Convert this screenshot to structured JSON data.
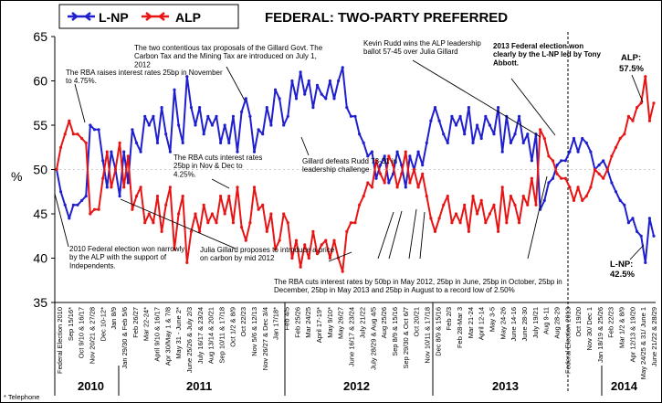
{
  "chart_data": {
    "type": "line",
    "title": "FEDERAL: TWO-PARTY PREFERRED",
    "ylabel": "%",
    "ylim": [
      35,
      65
    ],
    "yticks": [
      35,
      40,
      45,
      50,
      55,
      60,
      65
    ],
    "footnote": "* Telephone",
    "colors": {
      "lnp": "#1f1fcf",
      "alp": "#e81414"
    },
    "series": [
      {
        "name": "L-NP",
        "color": "#1f1fcf",
        "values": [
          50,
          47.5,
          46,
          44.5,
          46,
          46,
          46.5,
          47,
          55,
          54.5,
          54.5,
          51,
          48,
          52,
          50,
          47,
          52,
          48.5,
          54.5,
          53,
          52,
          56,
          55,
          56,
          53,
          57,
          54,
          52,
          59,
          55,
          53,
          60.5,
          57,
          55,
          57,
          54,
          56,
          55,
          56,
          53,
          55,
          53,
          56,
          52,
          56.5,
          58,
          56,
          52,
          54.5,
          54,
          57,
          55,
          59,
          58,
          55,
          56,
          60,
          58,
          61,
          58.5,
          60,
          57,
          59.5,
          58.5,
          58,
          60,
          58,
          60,
          61.5,
          57,
          56,
          56,
          54,
          53,
          51.5,
          52,
          49,
          50.5,
          51.5,
          48.5,
          49.5,
          52,
          50.5,
          48,
          51.5,
          50,
          52,
          50.5,
          53,
          55.5,
          57,
          55.5,
          54,
          53,
          56,
          55,
          56,
          54,
          57,
          53,
          55,
          53.5,
          56,
          55,
          54,
          57,
          52,
          56,
          53,
          54,
          56,
          53,
          54,
          51,
          54,
          45.5,
          46.5,
          48.5,
          49,
          50.5,
          51,
          51,
          52,
          53.5,
          52,
          53.5,
          53,
          52,
          50,
          50.5,
          51,
          50,
          48.5,
          47.5,
          46.5,
          46,
          44,
          44.5,
          43,
          42.5,
          39.5,
          44.5,
          42.5
        ]
      },
      {
        "name": "ALP",
        "color": "#e81414",
        "values": [
          50,
          52.5,
          54,
          55.5,
          54,
          54,
          53.5,
          53,
          45,
          45.5,
          45.5,
          49,
          52,
          48,
          50,
          53,
          48,
          51.5,
          45.5,
          47,
          48,
          44,
          45,
          44,
          47,
          43,
          46,
          48,
          41,
          45,
          47,
          39.5,
          43,
          45,
          43,
          46,
          44,
          45,
          44,
          47,
          45,
          47,
          44,
          48,
          43.5,
          42,
          44,
          48,
          45.5,
          46,
          43,
          45,
          41,
          42,
          45,
          44,
          40,
          42,
          39,
          41.5,
          40,
          43,
          40.5,
          41.5,
          42,
          40,
          42,
          40,
          38.5,
          43,
          44,
          44,
          46,
          47,
          48.5,
          48,
          51,
          49.5,
          48.5,
          51.5,
          50.5,
          48,
          49.5,
          52,
          48.5,
          50,
          48,
          49.5,
          47,
          44.5,
          43,
          44.5,
          46,
          47,
          44,
          45,
          44,
          46,
          43,
          47,
          45,
          46.5,
          44,
          45,
          46,
          43,
          48,
          44,
          47,
          46,
          44,
          47,
          46,
          49,
          46,
          54.5,
          53.5,
          51.5,
          51,
          49.5,
          49,
          49,
          48,
          46.5,
          48,
          46.5,
          47,
          48,
          50,
          49.5,
          49,
          50,
          51.5,
          52.5,
          53.5,
          54,
          56,
          55.5,
          57,
          57.5,
          60.5,
          55.5,
          57.5
        ]
      }
    ],
    "legend": [
      "L-NP",
      "ALP"
    ],
    "x_tick_labels": [
      "Federal Election 2010",
      "Sep 15/16*",
      "Oct 9/10 & 16/17",
      "Nov 20/21 & 27/28",
      "Dec 10-12*",
      "Jan 8/9",
      "Jan 29/30 & Feb 5/6",
      "Feb 26/27",
      "Mar 22-24*",
      "April 9/10 & 16/17",
      "Apr 30/May 1 & 7/8",
      "May 31 - June 2*",
      "June 25/26 & July 2/3",
      "July 16/17 & 23/24",
      "Aug 13/14 & 20/21",
      "Sep 10/11 & 17/18",
      "Oct 1/2 & 8/9",
      "Oct 22/23",
      "Nov 5/6 & 12/13",
      "Nov 26/27 & Dec 3/4",
      "Jan 17/18*",
      "Feb 4/5",
      "Feb 25/26",
      "Mar 24/25",
      "April 17-19*",
      "May 9/10*",
      "May 26/27",
      "June 16/17 & 23/24",
      "July 21/22",
      "July 28/29 & Aug 4/5",
      "Aug 25/26",
      "Sep 8/9 & 15/16",
      "Sep 29/30 & Oct 6/7",
      "Oct 20/21",
      "Nov 10/11 & 17/18",
      "Dec 8/9 & 15/16",
      "Feb 2/3",
      "Feb 28-Mar 3",
      "Mar 21-24",
      "April 12-14",
      "May 3-5",
      "May 24-26",
      "June 14-16",
      "June 28-30",
      "July 19/21",
      "Aug 9-11",
      "Aug 28-29",
      "Federal Election 2013",
      "Oct 19/20",
      "Nov 30/ Dec 1",
      "Jan 18/19 & 25/26",
      "Feb 22/23",
      "Mar 1/2 & 8/9",
      "Apr 12/13 & 19/20",
      "May 24/25 & 31/ June 1",
      "June 21/22 & 28/29"
    ],
    "year_labels": [
      "2010",
      "2011",
      "2012",
      "2013",
      "2014"
    ],
    "annotations": [
      "The RBA raises interest rates 25bp in November to 4.75%.",
      "The two contentious tax proposals of the Gillard Govt. The Carbon Tax and the Mining Tax are introduced on July 1, 2012",
      "Kevin Rudd wins the ALP leadership ballot 57-45 over Julia Gillard",
      "2013 Federal election won clearly by the L-NP led by Tony Abbott.",
      "The RBA cuts interest rates 25bp in Nov & Dec to 4.25%.",
      "Gillard defeats Rudd 73-31 in leadership challenge",
      "2010 Federal election won narrowly by the ALP with the support of Independents.",
      "Julia Gillard proposes to introduce a price on carbon by mid 2012",
      "The RBA cuts interest rates by 50bp in May 2012, 25bp in June, 25bp in October, 25bp in December, 25bp in May 2013 and 25bp in August to a record low of 2.50%"
    ],
    "final_labels": {
      "alp_name": "ALP:",
      "alp_value": "57.5%",
      "lnp_name": "L-NP:",
      "lnp_value": "42.5%"
    }
  }
}
